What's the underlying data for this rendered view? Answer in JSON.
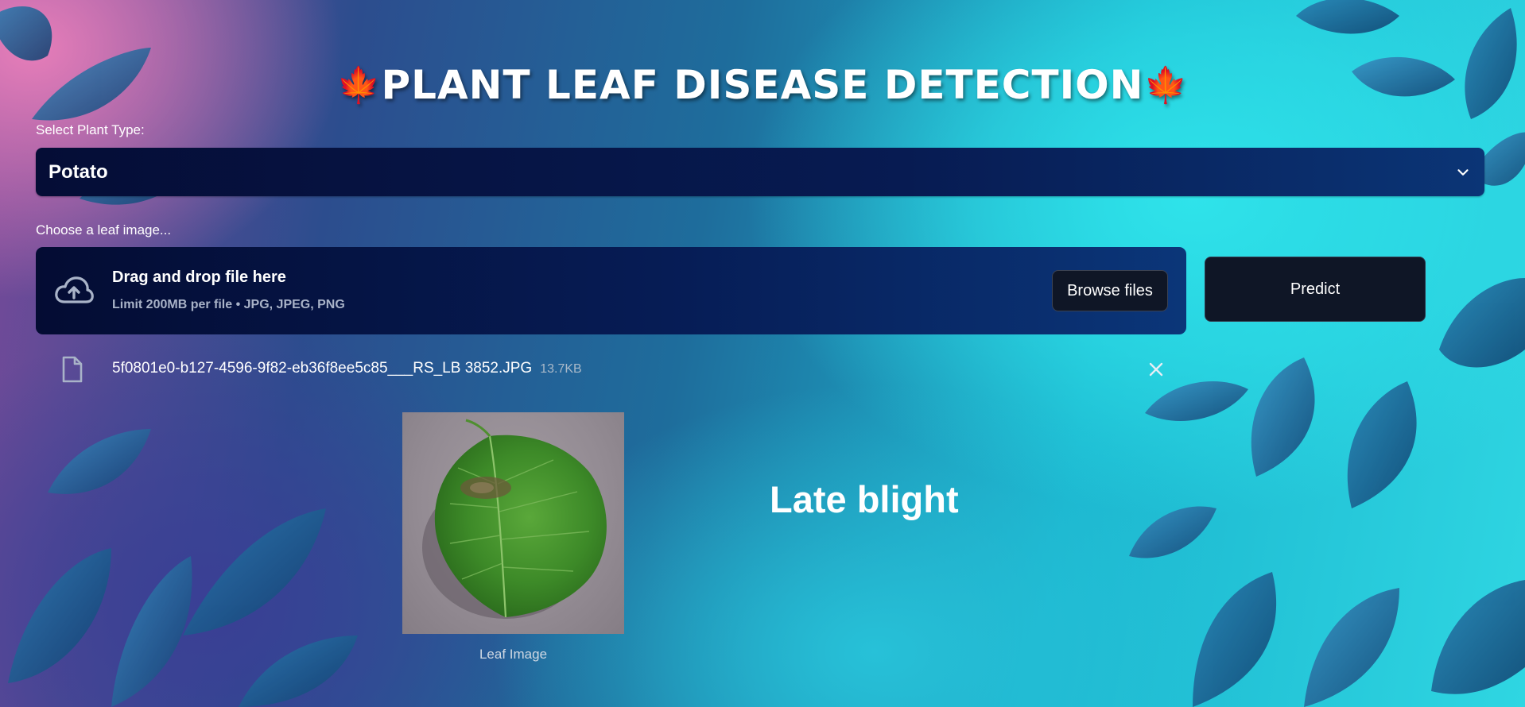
{
  "header": {
    "title": "PLANT LEAF DISEASE DETECTION",
    "left_emoji": "🍁",
    "right_emoji": "🍁"
  },
  "plant_select": {
    "label": "Select Plant Type:",
    "value": "Potato",
    "icon": "chevron-down-icon"
  },
  "uploader": {
    "label": "Choose a leaf image...",
    "drop_title": "Drag and drop file here",
    "limit_text": "Limit 200MB per file • JPG, JPEG, PNG",
    "browse_label": "Browse files",
    "icon": "cloud-upload-icon"
  },
  "predict_button": {
    "label": "Predict"
  },
  "uploaded_file": {
    "name": "5f0801e0-b127-4596-9f82-eb36f8ee5c85___RS_LB 3852.JPG",
    "size": "13.7KB",
    "icon": "file-icon",
    "remove_icon": "close-icon"
  },
  "preview": {
    "caption": "Leaf Image"
  },
  "result": {
    "label": "Late blight"
  },
  "colors": {
    "panel_dark": "#040c33",
    "button_bg": "#0f1626",
    "accent_cyan": "#2fe3ea",
    "accent_pink": "#e77eb9"
  }
}
